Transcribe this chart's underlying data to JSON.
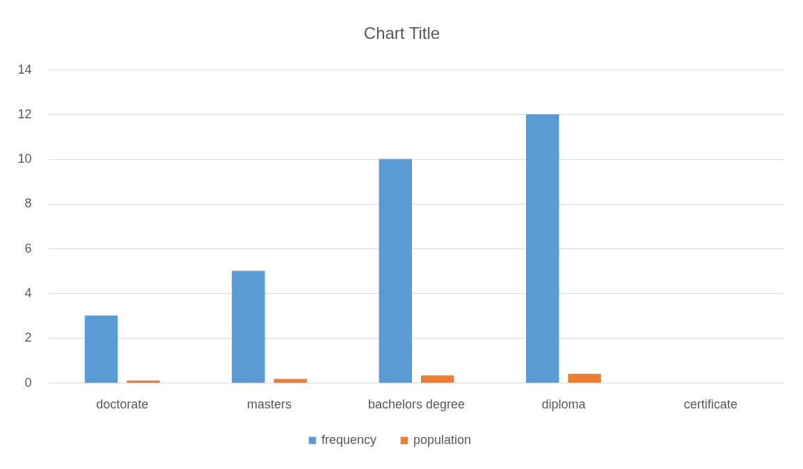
{
  "chart_data": {
    "type": "bar",
    "title": "Chart Title",
    "categories": [
      "doctorate",
      "masters",
      "bachelors degree",
      "diploma",
      "certificate"
    ],
    "series": [
      {
        "name": "frequency",
        "color": "#5b9bd5",
        "values": [
          3,
          5,
          10,
          12,
          null
        ]
      },
      {
        "name": "population",
        "color": "#ed7d31",
        "values": [
          0.1,
          0.17,
          0.33,
          0.4,
          null
        ]
      }
    ],
    "ylim": [
      0,
      14
    ],
    "yticks": [
      0,
      2,
      4,
      6,
      8,
      10,
      12,
      14
    ],
    "grid": "y",
    "legend": "bottom"
  }
}
